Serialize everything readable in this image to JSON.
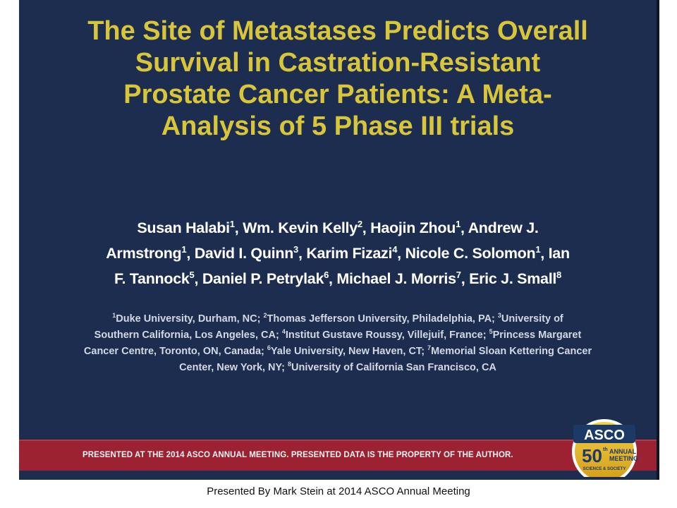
{
  "slide": {
    "title_lines": [
      "The Site of Metastases Predicts Overall",
      "Survival in Castration-Resistant",
      "Prostate Cancer Patients:  A Meta-",
      "Analysis of 5 Phase III trials"
    ],
    "authors": [
      {
        "name": "Susan Halabi",
        "sup": "1"
      },
      {
        "name": "Wm. Kevin Kelly",
        "sup": "2"
      },
      {
        "name": "Haojin Zhou",
        "sup": "1"
      },
      {
        "name": "Andrew J. Armstrong",
        "sup": "1"
      },
      {
        "name": "David I. Quinn",
        "sup": "3"
      },
      {
        "name": "Karim Fizazi",
        "sup": "4"
      },
      {
        "name": "Nicole C. Solomon",
        "sup": "1"
      },
      {
        "name": "Ian F. Tannock",
        "sup": "5"
      },
      {
        "name": "Daniel P. Petrylak",
        "sup": "6"
      },
      {
        "name": "Michael J. Morris",
        "sup": "7"
      },
      {
        "name": "Eric J. Small",
        "sup": "8"
      }
    ],
    "affiliations": [
      {
        "sup": "1",
        "text": "Duke University, Durham, NC"
      },
      {
        "sup": "2",
        "text": "Thomas Jefferson University, Philadelphia, PA"
      },
      {
        "sup": "3",
        "text": "University of Southern California, Los Angeles, CA"
      },
      {
        "sup": "4",
        "text": "Institut Gustave Roussy, Villejuif, France"
      },
      {
        "sup": "5",
        "text": "Princess Margaret Cancer Centre, Toronto, ON, Canada"
      },
      {
        "sup": "6",
        "text": "Yale University, New Haven, CT"
      },
      {
        "sup": "7",
        "text": "Memorial Sloan Kettering Cancer Center, New York,  NY"
      },
      {
        "sup": "8",
        "text": "University of California  San Francisco, CA"
      }
    ],
    "banner_text": "PRESENTED AT THE 2014 ASCO ANNUAL MEETING. PRESENTED DATA IS THE PROPERTY OF THE AUTHOR.",
    "logo": {
      "brand": "ASCO",
      "number": "50",
      "suffix": "th",
      "line1": "ANNUAL",
      "line2": "MEETING",
      "tagline": "SCIENCE & SOCIETY"
    }
  },
  "footer": "Presented By Mark Stein at 2014 ASCO Annual Meeting",
  "colors": {
    "background": "#1c2d50",
    "title": "#d8c53a",
    "banner": "#9c2232",
    "logo_gold": "#e3b62a"
  }
}
